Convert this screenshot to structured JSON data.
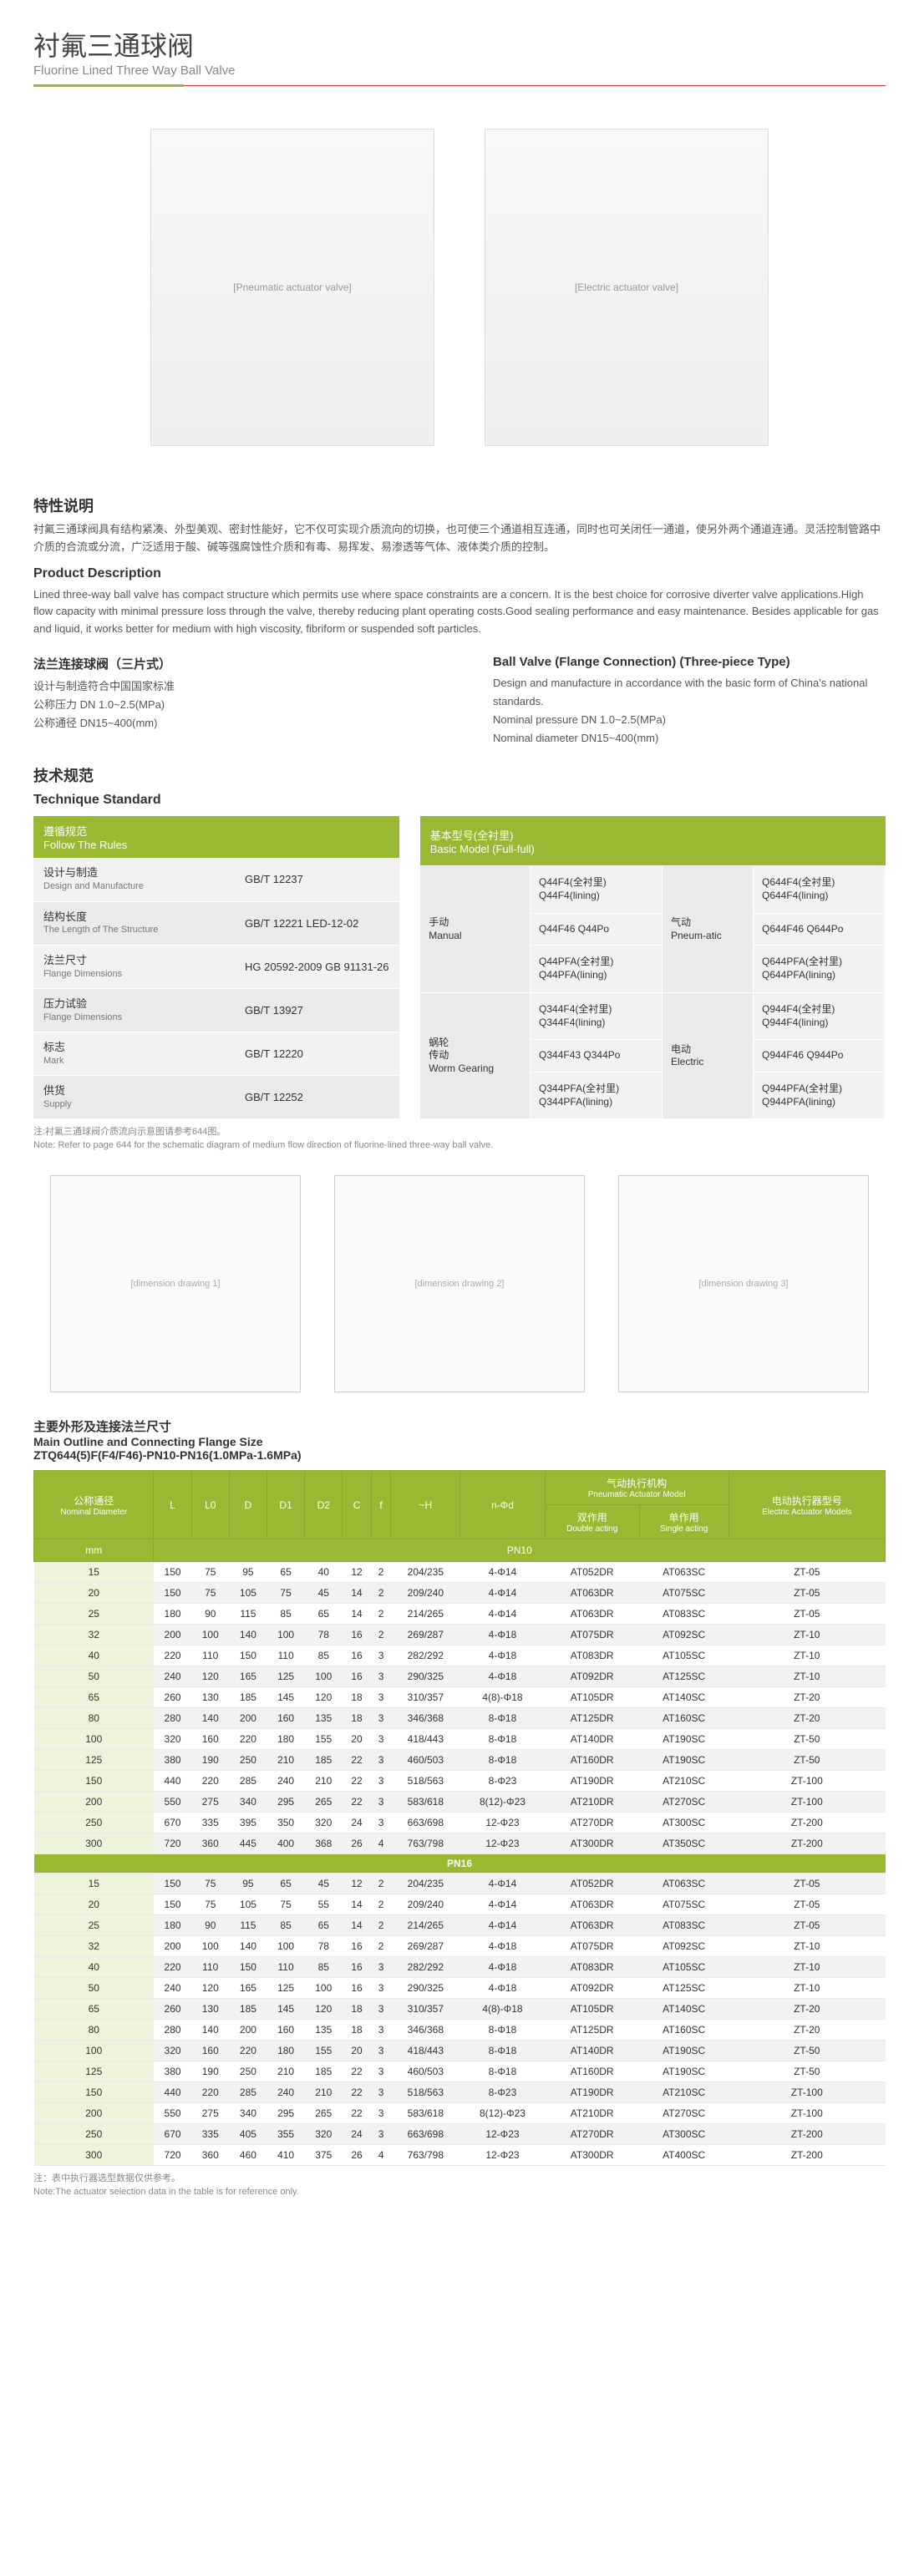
{
  "header": {
    "title_cn": "衬氟三通球阀",
    "title_en": "Fluorine Lined Three Way Ball Valve"
  },
  "features": {
    "title_cn": "特性说明",
    "body_cn": "衬氟三通球阀具有结构紧凑、外型美观、密封性能好，它不仅可实现介质流向的切换，也可使三个通道相互连通，同时也可关闭任一通道，使另外两个通道连通。灵活控制管路中介质的合流或分流，广泛适用于酸、碱等强腐蚀性介质和有毒、易挥发、易渗透等气体、液体类介质的控制。",
    "title_en": "Product Description",
    "body_en": "Lined three-way ball valve has compact structure which permits use where space constraints are a concern. It is the best choice for corrosive diverter valve applications.High flow capacity with minimal pressure loss through the valve, thereby reducing plant operating costs.Good sealing performance and easy maintenance. Besides applicable for gas and liquid, it works better for medium with high viscosity, fibriform or suspended soft particles."
  },
  "flangeConn": {
    "left": {
      "h": "法兰连接球阀（三片式）",
      "lines": [
        "设计与制造符合中国国家标准",
        "公称压力 DN 1.0~2.5(MPa)",
        "公称通径 DN15~400(mm)"
      ]
    },
    "right": {
      "h": "Ball Valve (Flange Connection) (Three-piece Type)",
      "lines": [
        "Design and manufacture in accordance with the basic form of China's national standards.",
        "Nominal pressure DN 1.0~2.5(MPa)",
        "Nominal diameter DN15~400(mm)"
      ]
    }
  },
  "tech": {
    "cn": "技术规范",
    "en": "Technique Standard"
  },
  "rules": {
    "header": "遵循规范\nFollow The Rules",
    "rows": [
      {
        "cn": "设计与制造",
        "en": "Design and Manufacture",
        "val": "GB/T 12237"
      },
      {
        "cn": "结构长度",
        "en": "The Length of The Structure",
        "val": "GB/T 12221 LED-12-02"
      },
      {
        "cn": "法兰尺寸",
        "en": "Flange Dimensions",
        "val": "HG 20592-2009  GB 91131-26"
      },
      {
        "cn": "压力试验",
        "en": "Flange Dimensions",
        "val": "GB/T 13927"
      },
      {
        "cn": "标志",
        "en": "Mark",
        "val": "GB/T 12220"
      },
      {
        "cn": "供货",
        "en": "Supply",
        "val": "GB/T 12252"
      }
    ]
  },
  "basicModel": {
    "header": "基本型号(全衬里)\nBasic Model (Full-full)",
    "groups": [
      {
        "rh_cn": "手动",
        "rh_en": "Manual",
        "c1": [
          "Q44F4(全衬里)\nQ44F4(lining)",
          "Q44F46 Q44Po",
          "Q44PFA(全衬里)\nQ44PFA(lining)"
        ],
        "mid_cn": "气动",
        "mid_en": "Pneum-atic",
        "c2": [
          "Q644F4(全衬里)\nQ644F4(lining)",
          "Q644F46 Q644Po",
          "Q644PFA(全衬里)\nQ644PFA(lining)"
        ]
      },
      {
        "rh_cn": "蜗轮\n传动",
        "rh_en": "Worm Gearing",
        "c1": [
          "Q344F4(全衬里)\nQ344F4(lining)",
          "Q344F43 Q344Po",
          "Q344PFA(全衬里)\nQ344PFA(lining)"
        ],
        "mid_cn": "电动",
        "mid_en": "Electric",
        "c2": [
          "Q944F4(全衬里)\nQ944F4(lining)",
          "Q944F46 Q944Po",
          "Q944PFA(全衬里)\nQ944PFA(lining)"
        ]
      }
    ]
  },
  "note1": "注:衬氟三通球阀介质流向示意图请参考644图。\nNote: Refer to page 644 for the schematic diagram of medium flow direction of fluorine-lined three-way ball valve.",
  "mainOutline": {
    "cn": "主要外形及连接法兰尺寸",
    "en": "Main Outline and Connecting Flange Size",
    "model": "ZTQ644(5)F(F4/F46)-PN10-PN16(1.0MPa-1.6MPa)"
  },
  "flangeTable": {
    "headers": {
      "nom_cn": "公称通径",
      "nom_en": "Nominal Diameter",
      "unit": "mm",
      "cols": [
        "L",
        "L0",
        "D",
        "D1",
        "D2",
        "C",
        "f",
        "~H",
        "n-Φd"
      ],
      "pneu_cn": "气动执行机构",
      "pneu_en": "Pneumatic Actuator Model",
      "dbl_cn": "双作用",
      "dbl_en": "Double acting",
      "sgl_cn": "单作用",
      "sgl_en": "Single acting",
      "elec_cn": "电动执行器型号",
      "elec_en": "Electric Actuator Models"
    },
    "pn10_label": "PN10",
    "pn16_label": "PN16",
    "pn10": [
      [
        "15",
        "150",
        "75",
        "95",
        "65",
        "40",
        "12",
        "2",
        "204/235",
        "4-Φ14",
        "AT052DR",
        "AT063SC",
        "ZT-05"
      ],
      [
        "20",
        "150",
        "75",
        "105",
        "75",
        "45",
        "14",
        "2",
        "209/240",
        "4-Φ14",
        "AT063DR",
        "AT075SC",
        "ZT-05"
      ],
      [
        "25",
        "180",
        "90",
        "115",
        "85",
        "65",
        "14",
        "2",
        "214/265",
        "4-Φ14",
        "AT063DR",
        "AT083SC",
        "ZT-05"
      ],
      [
        "32",
        "200",
        "100",
        "140",
        "100",
        "78",
        "16",
        "2",
        "269/287",
        "4-Φ18",
        "AT075DR",
        "AT092SC",
        "ZT-10"
      ],
      [
        "40",
        "220",
        "110",
        "150",
        "110",
        "85",
        "16",
        "3",
        "282/292",
        "4-Φ18",
        "AT083DR",
        "AT105SC",
        "ZT-10"
      ],
      [
        "50",
        "240",
        "120",
        "165",
        "125",
        "100",
        "16",
        "3",
        "290/325",
        "4-Φ18",
        "AT092DR",
        "AT125SC",
        "ZT-10"
      ],
      [
        "65",
        "260",
        "130",
        "185",
        "145",
        "120",
        "18",
        "3",
        "310/357",
        "4(8)-Φ18",
        "AT105DR",
        "AT140SC",
        "ZT-20"
      ],
      [
        "80",
        "280",
        "140",
        "200",
        "160",
        "135",
        "18",
        "3",
        "346/368",
        "8-Φ18",
        "AT125DR",
        "AT160SC",
        "ZT-20"
      ],
      [
        "100",
        "320",
        "160",
        "220",
        "180",
        "155",
        "20",
        "3",
        "418/443",
        "8-Φ18",
        "AT140DR",
        "AT190SC",
        "ZT-50"
      ],
      [
        "125",
        "380",
        "190",
        "250",
        "210",
        "185",
        "22",
        "3",
        "460/503",
        "8-Φ18",
        "AT160DR",
        "AT190SC",
        "ZT-50"
      ],
      [
        "150",
        "440",
        "220",
        "285",
        "240",
        "210",
        "22",
        "3",
        "518/563",
        "8-Φ23",
        "AT190DR",
        "AT210SC",
        "ZT-100"
      ],
      [
        "200",
        "550",
        "275",
        "340",
        "295",
        "265",
        "22",
        "3",
        "583/618",
        "8(12)-Φ23",
        "AT210DR",
        "AT270SC",
        "ZT-100"
      ],
      [
        "250",
        "670",
        "335",
        "395",
        "350",
        "320",
        "24",
        "3",
        "663/698",
        "12-Φ23",
        "AT270DR",
        "AT300SC",
        "ZT-200"
      ],
      [
        "300",
        "720",
        "360",
        "445",
        "400",
        "368",
        "26",
        "4",
        "763/798",
        "12-Φ23",
        "AT300DR",
        "AT350SC",
        "ZT-200"
      ]
    ],
    "pn16": [
      [
        "15",
        "150",
        "75",
        "95",
        "65",
        "45",
        "12",
        "2",
        "204/235",
        "4-Φ14",
        "AT052DR",
        "AT063SC",
        "ZT-05"
      ],
      [
        "20",
        "150",
        "75",
        "105",
        "75",
        "55",
        "14",
        "2",
        "209/240",
        "4-Φ14",
        "AT063DR",
        "AT075SC",
        "ZT-05"
      ],
      [
        "25",
        "180",
        "90",
        "115",
        "85",
        "65",
        "14",
        "2",
        "214/265",
        "4-Φ14",
        "AT063DR",
        "AT083SC",
        "ZT-05"
      ],
      [
        "32",
        "200",
        "100",
        "140",
        "100",
        "78",
        "16",
        "2",
        "269/287",
        "4-Φ18",
        "AT075DR",
        "AT092SC",
        "ZT-10"
      ],
      [
        "40",
        "220",
        "110",
        "150",
        "110",
        "85",
        "16",
        "3",
        "282/292",
        "4-Φ18",
        "AT083DR",
        "AT105SC",
        "ZT-10"
      ],
      [
        "50",
        "240",
        "120",
        "165",
        "125",
        "100",
        "16",
        "3",
        "290/325",
        "4-Φ18",
        "AT092DR",
        "AT125SC",
        "ZT-10"
      ],
      [
        "65",
        "260",
        "130",
        "185",
        "145",
        "120",
        "18",
        "3",
        "310/357",
        "4(8)-Φ18",
        "AT105DR",
        "AT140SC",
        "ZT-20"
      ],
      [
        "80",
        "280",
        "140",
        "200",
        "160",
        "135",
        "18",
        "3",
        "346/368",
        "8-Φ18",
        "AT125DR",
        "AT160SC",
        "ZT-20"
      ],
      [
        "100",
        "320",
        "160",
        "220",
        "180",
        "155",
        "20",
        "3",
        "418/443",
        "8-Φ18",
        "AT140DR",
        "AT190SC",
        "ZT-50"
      ],
      [
        "125",
        "380",
        "190",
        "250",
        "210",
        "185",
        "22",
        "3",
        "460/503",
        "8-Φ18",
        "AT160DR",
        "AT190SC",
        "ZT-50"
      ],
      [
        "150",
        "440",
        "220",
        "285",
        "240",
        "210",
        "22",
        "3",
        "518/563",
        "8-Φ23",
        "AT190DR",
        "AT210SC",
        "ZT-100"
      ],
      [
        "200",
        "550",
        "275",
        "340",
        "295",
        "265",
        "22",
        "3",
        "583/618",
        "8(12)-Φ23",
        "AT210DR",
        "AT270SC",
        "ZT-100"
      ],
      [
        "250",
        "670",
        "335",
        "405",
        "355",
        "320",
        "24",
        "3",
        "663/698",
        "12-Φ23",
        "AT270DR",
        "AT300SC",
        "ZT-200"
      ],
      [
        "300",
        "720",
        "360",
        "460",
        "410",
        "375",
        "26",
        "4",
        "763/798",
        "12-Φ23",
        "AT300DR",
        "AT400SC",
        "ZT-200"
      ]
    ]
  },
  "note2": "注：表中执行器选型数据仅供参考。\nNote:The actuator selection data in the table is for reference only.",
  "colors": {
    "accent": "#99b933",
    "rule": "#c33",
    "bg_alt": "#f2f2f2"
  }
}
